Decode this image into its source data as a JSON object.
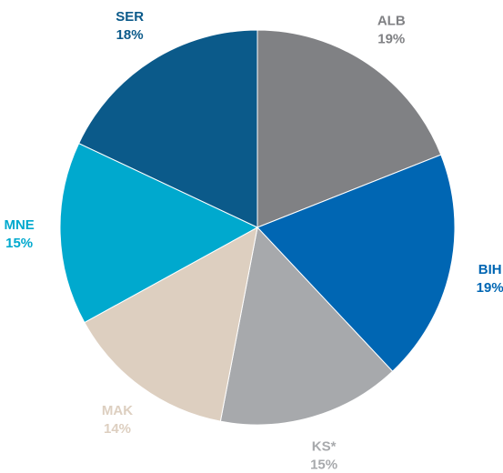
{
  "chart_data": {
    "type": "pie",
    "categories": [
      "ALB",
      "BIH",
      "KS*",
      "MAK",
      "MNE",
      "SER"
    ],
    "values": [
      19,
      19,
      15,
      14,
      15,
      18
    ],
    "value_labels": [
      "19%",
      "19%",
      "15%",
      "14%",
      "15%",
      "18%"
    ],
    "colors": [
      "#808184",
      "#0066b3",
      "#a7a9ac",
      "#ddcfc0",
      "#00a9ce",
      "#0b5a8a"
    ]
  }
}
